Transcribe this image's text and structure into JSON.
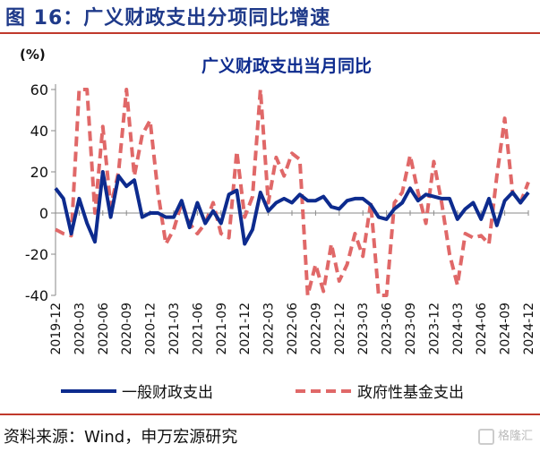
{
  "figure": {
    "title": "图 16：广义财政支出分项同比增速"
  },
  "footer": {
    "source": "资料来源：Wind，申万宏源研究",
    "watermark": "格隆汇"
  },
  "chart_data": {
    "type": "line",
    "title": "广义财政支出当月同比",
    "ylabel": "(%)",
    "xlabel": "",
    "ylim": [
      -40,
      60
    ],
    "yticks": [
      -40,
      -20,
      0,
      20,
      40,
      60
    ],
    "x": [
      "2019-12",
      "2020-01",
      "2020-02",
      "2020-03",
      "2020-04",
      "2020-05",
      "2020-06",
      "2020-07",
      "2020-08",
      "2020-09",
      "2020-10",
      "2020-11",
      "2020-12",
      "2021-01",
      "2021-02",
      "2021-03",
      "2021-04",
      "2021-05",
      "2021-06",
      "2021-07",
      "2021-08",
      "2021-09",
      "2021-10",
      "2021-11",
      "2021-12",
      "2022-01",
      "2022-02",
      "2022-03",
      "2022-04",
      "2022-05",
      "2022-06",
      "2022-07",
      "2022-08",
      "2022-09",
      "2022-10",
      "2022-11",
      "2022-12",
      "2023-01",
      "2023-02",
      "2023-03",
      "2023-04",
      "2023-05",
      "2023-06",
      "2023-07",
      "2023-08",
      "2023-09",
      "2023-10",
      "2023-11",
      "2023-12",
      "2024-01",
      "2024-02",
      "2024-03",
      "2024-04",
      "2024-05",
      "2024-06",
      "2024-07",
      "2024-08",
      "2024-09",
      "2024-10",
      "2024-11",
      "2024-12"
    ],
    "xtick_labels": [
      "2019-12",
      "2020-03",
      "2020-06",
      "2020-09",
      "2020-12",
      "2021-03",
      "2021-06",
      "2021-09",
      "2021-12",
      "2022-03",
      "2022-06",
      "2022-09",
      "2022-12",
      "2023-03",
      "2023-06",
      "2023-09",
      "2023-12",
      "2024-03",
      "2024-06",
      "2024-09",
      "2024-12"
    ],
    "legend_position": "bottom",
    "series": [
      {
        "name": "一般财政支出",
        "color": "#0d2b8e",
        "style": "solid",
        "values": [
          12,
          7,
          -10,
          7,
          -5,
          -14,
          20,
          -2,
          18,
          13,
          16,
          -2,
          0,
          0,
          -2,
          -2,
          6,
          -7,
          5,
          -5,
          1,
          -5,
          9,
          11,
          -15,
          -8,
          10,
          1,
          5,
          7,
          5,
          9,
          6,
          6,
          8,
          3,
          2,
          6,
          7,
          7,
          4,
          -2,
          -3,
          2,
          5,
          12,
          6,
          9,
          8,
          7,
          7,
          -3,
          2,
          5,
          -3,
          7,
          -6,
          6,
          10,
          5,
          10
        ]
      },
      {
        "name": "政府性基金支出",
        "color": "#e06868",
        "style": "dashed",
        "values": [
          -8,
          -10,
          -11,
          60,
          60,
          0,
          42,
          3,
          20,
          60,
          18,
          38,
          45,
          10,
          -15,
          -8,
          5,
          -5,
          -10,
          -5,
          5,
          -10,
          -12,
          30,
          -2,
          8,
          60,
          5,
          27,
          18,
          29,
          26,
          -40,
          -25,
          -38,
          -15,
          -33,
          -25,
          -10,
          -21,
          5,
          -40,
          -40,
          5,
          10,
          28,
          10,
          -5,
          25,
          5,
          -20,
          -35,
          -10,
          -12,
          -11,
          -15,
          18,
          46,
          10,
          5,
          15
        ]
      }
    ]
  }
}
